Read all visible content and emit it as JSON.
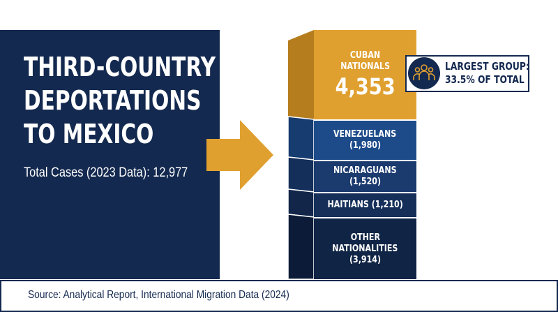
{
  "title_lines": [
    "THIRD-COUNTRY",
    "DEPORTATIONS",
    "TO MEXICO"
  ],
  "total": {
    "label": "Total Cases (2023 Data):",
    "value": "12,977"
  },
  "callout": {
    "icon": "people-group-icon",
    "lines": [
      "LARGEST GROUP:",
      "33.5% OF TOTAL"
    ]
  },
  "source": "Source: Analytical Report, International Migration Data (2024)",
  "colors": {
    "navy": "#14294f",
    "accent": "#e0a030",
    "segments": [
      "#e0a030",
      "#1d4b8a",
      "#1b3a6e",
      "#152f59",
      "#102445"
    ]
  },
  "chart_data": {
    "type": "bar",
    "subtype": "stacked-single",
    "categories": [
      "CUBAN NATIONALS",
      "VENEZUELANS",
      "NICARAGUANS",
      "HAITIANS",
      "OTHER NATIONALITIES"
    ],
    "values": [
      4353,
      1980,
      1520,
      1210,
      3914
    ],
    "value_labels": [
      "4,353",
      "(1,980)",
      "(1,520)",
      "(1,210)",
      "(3,914)"
    ],
    "total": 12977
  }
}
